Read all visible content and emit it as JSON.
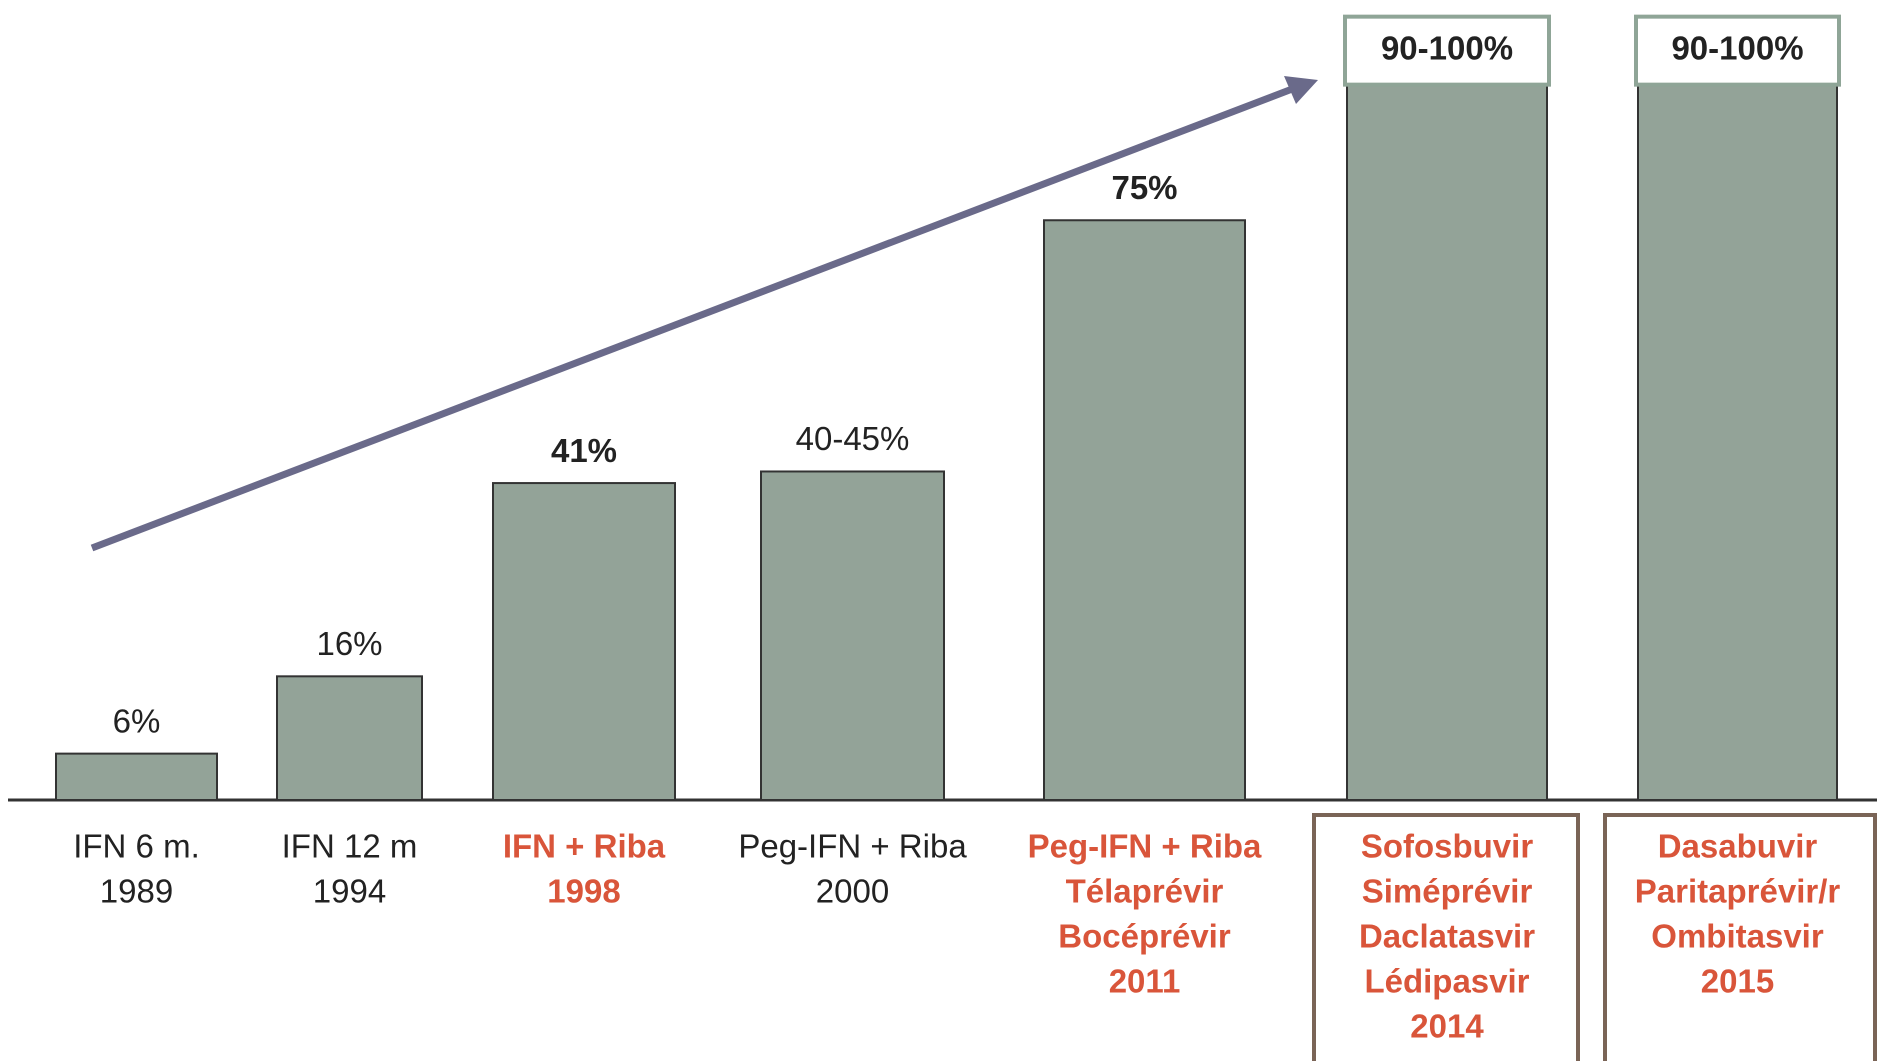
{
  "chart_data": {
    "type": "bar",
    "categories": [
      [
        "IFN 6 m.",
        "1989"
      ],
      [
        "IFN 12 m",
        "1994"
      ],
      [
        "IFN + Riba",
        "1998"
      ],
      [
        "Peg-IFN + Riba",
        "2000"
      ],
      [
        "Peg-IFN + Riba",
        "Télaprévir",
        "Bocéprévir",
        "2011"
      ],
      [
        "Sofosbuvir",
        "Siméprévir",
        "Daclatasvir",
        "Lédipasvir",
        "2014"
      ],
      [
        "Dasabuvir",
        "Paritaprévir/r",
        "Ombitasvir",
        "2015"
      ]
    ],
    "values": [
      6,
      16,
      41,
      42.5,
      75,
      95,
      95
    ],
    "value_labels": [
      "6%",
      "16%",
      "41%",
      "40-45%",
      "75%",
      "90-100%",
      "90-100%"
    ],
    "value_label_bold": [
      false,
      false,
      true,
      false,
      true,
      true,
      true
    ],
    "value_label_boxed": [
      false,
      false,
      false,
      false,
      false,
      true,
      true
    ],
    "category_bold": [
      false,
      false,
      true,
      false,
      true,
      true,
      true
    ],
    "category_colors": [
      "#222222",
      "#222222",
      "#d9553a",
      "#222222",
      "#d9553a",
      "#d9553a",
      "#d9553a"
    ],
    "category_boxed": [
      false,
      false,
      false,
      false,
      false,
      true,
      true
    ],
    "color": "#93a398",
    "ylim": [
      0,
      100
    ]
  }
}
